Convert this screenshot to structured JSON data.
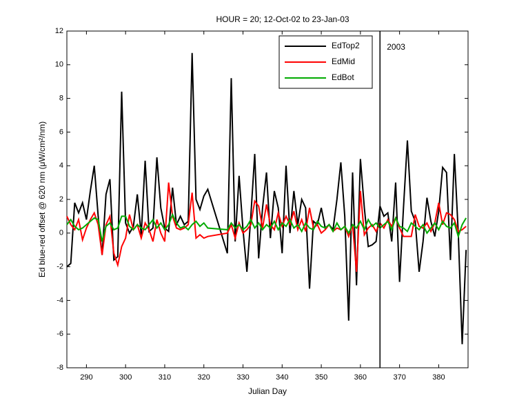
{
  "chart_data": {
    "type": "line",
    "title": "HOUR = 20; 12-Oct-02 to 23-Jan-03",
    "x_label": "Julian Day",
    "y_label": "Ed blue-red offset @ 620 nm (μW/cm²/nm)",
    "x": [
      285,
      286,
      287,
      288,
      289,
      290,
      291,
      292,
      293,
      294,
      295,
      296,
      297,
      298,
      299,
      300,
      301,
      302,
      303,
      304,
      305,
      306,
      307,
      308,
      309,
      310,
      311,
      312,
      313,
      314,
      315,
      316,
      317,
      318,
      319,
      320,
      321,
      326,
      327,
      328,
      329,
      330,
      331,
      332,
      333,
      334,
      335,
      336,
      337,
      338,
      339,
      340,
      341,
      342,
      343,
      344,
      345,
      346,
      347,
      348,
      349,
      350,
      351,
      352,
      353,
      354,
      355,
      356,
      357,
      358,
      359,
      360,
      361,
      362,
      363,
      364,
      365,
      366,
      367,
      368,
      369,
      370,
      371,
      372,
      373,
      374,
      375,
      376,
      377,
      378,
      379,
      380,
      381,
      382,
      383,
      384,
      385,
      386,
      387
    ],
    "series": [
      {
        "name": "EdTop2",
        "color": "#000000",
        "values": [
          -2,
          -1.8,
          1.8,
          1.2,
          1.8,
          0.8,
          2.5,
          4,
          1,
          -1.3,
          2.3,
          3.2,
          -1.6,
          -1.4,
          8.4,
          0.6,
          0,
          0.4,
          2.3,
          -0.1,
          4.3,
          0.1,
          0.3,
          4.5,
          1.5,
          0.3,
          0.1,
          2.7,
          0.5,
          1,
          0.5,
          0.7,
          10.7,
          2,
          1.4,
          2.2,
          2.6,
          -1.2,
          9.2,
          -0.5,
          3.4,
          0.2,
          -2.3,
          1,
          4.7,
          -1.5,
          1.5,
          3.6,
          -0.3,
          2.5,
          1.5,
          -1.2,
          4,
          0,
          2.5,
          0.5,
          2,
          1.5,
          -3.3,
          0.7,
          0.5,
          1.5,
          0.3,
          0.5,
          0.2,
          2,
          4.2,
          1,
          -5.2,
          3.6,
          -3.1,
          4.4,
          1.5,
          -0.8,
          -0.7,
          -0.5,
          1.6,
          1,
          1.2,
          -0.5,
          3,
          -2.9,
          1.5,
          5.5,
          1.3,
          0.7,
          -2.3,
          -0.5,
          2.1,
          0.7,
          -0.2,
          1.3,
          3.9,
          3.6,
          -1.6,
          4.7,
          0,
          -6.6,
          -1
        ]
      },
      {
        "name": "EdMid",
        "color": "#ff0000",
        "values": [
          1,
          0.5,
          0.2,
          0.8,
          -0.4,
          0.3,
          0.8,
          1.2,
          0.5,
          -1.3,
          0.5,
          1,
          -1.2,
          -1.9,
          -0.8,
          -0.3,
          1.1,
          0.2,
          0.5,
          -0.3,
          0.6,
          0.2,
          -0.5,
          0.8,
          0,
          -0.5,
          3,
          1,
          0.3,
          0.2,
          0.3,
          0.5,
          2.4,
          -0.3,
          -0.1,
          -0.3,
          -0.2,
          0,
          0.5,
          -0.3,
          0.6,
          0,
          0.2,
          0.5,
          1.9,
          1.6,
          0.3,
          1.7,
          0.5,
          0.2,
          1.2,
          0.4,
          1,
          0.5,
          1.3,
          0.2,
          0.8,
          0.1,
          1.5,
          0.3,
          0.5,
          0,
          0.2,
          0.5,
          0.1,
          0.3,
          0.2,
          0.4,
          -0.2,
          0.5,
          -2.3,
          2.5,
          -0.1,
          0.3,
          0.5,
          0.1,
          0.6,
          0.3,
          0.8,
          0.4,
          0.9,
          0.3,
          -0.2,
          -0.2,
          -0.2,
          1.1,
          0.4,
          0.3,
          0.6,
          0.1,
          0.6,
          1.8,
          0.5,
          1.2,
          1.1,
          0.8,
          0.1,
          0.2,
          0.4
        ]
      },
      {
        "name": "EdBot",
        "color": "#00aa00",
        "values": [
          0.5,
          0.8,
          0.4,
          0.2,
          0.3,
          0.5,
          0.7,
          0.9,
          0.8,
          -0.5,
          0.4,
          0.6,
          0.2,
          0.3,
          1,
          1,
          0.4,
          0.2,
          0.5,
          0.3,
          0.2,
          0.5,
          0.8,
          0.3,
          0.6,
          0.2,
          0.5,
          1.1,
          0.6,
          0.3,
          0.4,
          0.2,
          0.5,
          0.7,
          0.4,
          0.6,
          0.3,
          0.2,
          0.6,
          0.3,
          0.5,
          0.2,
          0.4,
          0.8,
          0.3,
          0.6,
          0.2,
          0.5,
          0.3,
          0.7,
          0.2,
          0.6,
          0.4,
          0.8,
          0.3,
          0.5,
          0.1,
          0.6,
          0.3,
          0.2,
          0.7,
          0.4,
          0.3,
          0.5,
          0.1,
          0.6,
          0.2,
          0.4,
          0,
          0.5,
          0.3,
          0.7,
          0.2,
          0.8,
          0.4,
          0.6,
          0.3,
          0.5,
          0.7,
          0.2,
          0.9,
          0.4,
          0.3,
          0.1,
          0.6,
          0.4,
          0.2,
          0.5,
          0,
          0.3,
          0.6,
          0.2,
          0.7,
          0.4,
          0.3,
          0.6,
          -0.2,
          0.5,
          0.9
        ]
      }
    ],
    "annotations": [
      {
        "x": 365,
        "label": "2003"
      }
    ],
    "xlim": [
      285,
      387.5
    ],
    "xticks": [
      290,
      300,
      310,
      320,
      330,
      340,
      350,
      360,
      370,
      380
    ],
    "ylim": [
      -8,
      12
    ],
    "yticks": [
      -8,
      -6,
      -4,
      -2,
      0,
      2,
      4,
      6,
      8,
      10,
      12
    ],
    "legend": "upper-center"
  }
}
